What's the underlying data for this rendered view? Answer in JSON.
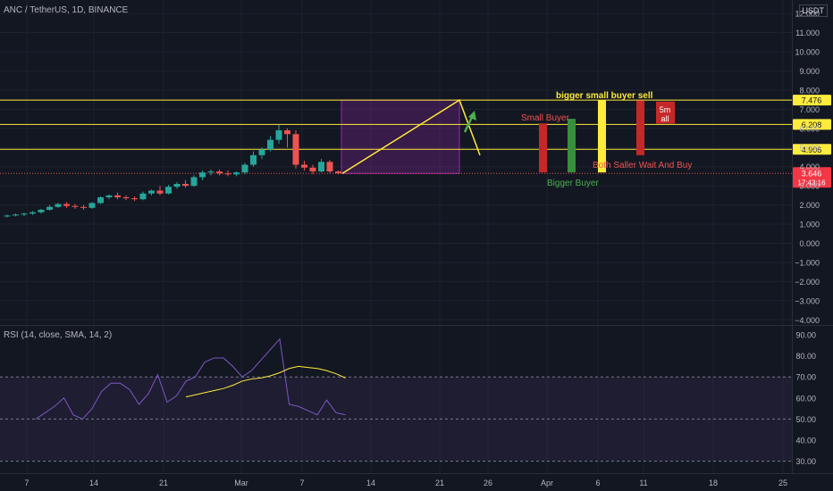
{
  "header": {
    "symbol_line": "ANC / TetherUS, 1D, BINANCE",
    "currency": "USDT"
  },
  "rsi_panel": {
    "title": "RSI (14, close, SMA, 14, 2)",
    "y_ticks": [
      "90.00",
      "80.00",
      "70.00",
      "60.00",
      "50.00",
      "40.00",
      "30.00"
    ]
  },
  "price_panel": {
    "y_ticks": [
      "12.000",
      "11.000",
      "10.000",
      "9.000",
      "8.000",
      "7.000",
      "6.000",
      "5.000",
      "4.000",
      "3.000",
      "2.000",
      "1.000",
      "0.000",
      "−1.000",
      "−2.000",
      "−3.000",
      "−4.000"
    ]
  },
  "x_axis": {
    "labels": [
      "7",
      "14",
      "21",
      "Mar",
      "7",
      "14",
      "21",
      "26",
      "Apr",
      "6",
      "11",
      "18",
      "25"
    ]
  },
  "levels": [
    {
      "value": "7.476",
      "color": "#ffeb3b"
    },
    {
      "value": "6.208",
      "color": "#ffeb3b"
    },
    {
      "value": "4.906",
      "color": "#ffeb3b"
    }
  ],
  "current_price": {
    "value": "3.646",
    "timer": "17:43:16",
    "color": "#f23645"
  },
  "annotations": {
    "bigger_small_buyer_sell": "bigger small buyer sell",
    "small_buyer": "Small Buyer",
    "bigger_buyer": "Bigger Buyer",
    "both_saller": "Both Saller Wait And Buy",
    "box_5m_line1": "5m",
    "box_5m_line2": "all"
  },
  "colors": {
    "up": "#26a69a",
    "down": "#ef5350",
    "level": "#ffeb3b",
    "rsi": "#7e57c2",
    "rsi_ma": "#ffeb3b",
    "zone_fill": "#9c27b0",
    "green_bar": "#388e3c",
    "red_bar": "#c62828",
    "yellow_bar": "#ffeb3b"
  },
  "chart_data": [
    {
      "type": "candlestick",
      "title": "ANC / TetherUS, 1D, BINANCE",
      "ylim": [
        -4,
        13
      ],
      "candles": [
        {
          "o": 1.4,
          "h": 1.5,
          "l": 1.35,
          "c": 1.45
        },
        {
          "o": 1.45,
          "h": 1.55,
          "l": 1.4,
          "c": 1.5
        },
        {
          "o": 1.5,
          "h": 1.6,
          "l": 1.42,
          "c": 1.55
        },
        {
          "o": 1.55,
          "h": 1.68,
          "l": 1.48,
          "c": 1.62
        },
        {
          "o": 1.62,
          "h": 1.8,
          "l": 1.55,
          "c": 1.75
        },
        {
          "o": 1.75,
          "h": 2.0,
          "l": 1.7,
          "c": 1.9
        },
        {
          "o": 1.9,
          "h": 2.1,
          "l": 1.85,
          "c": 2.05
        },
        {
          "o": 2.05,
          "h": 2.15,
          "l": 1.85,
          "c": 1.95
        },
        {
          "o": 1.95,
          "h": 2.05,
          "l": 1.8,
          "c": 1.9
        },
        {
          "o": 1.9,
          "h": 2.0,
          "l": 1.75,
          "c": 1.85
        },
        {
          "o": 1.85,
          "h": 2.15,
          "l": 1.8,
          "c": 2.1
        },
        {
          "o": 2.1,
          "h": 2.45,
          "l": 2.05,
          "c": 2.4
        },
        {
          "o": 2.4,
          "h": 2.55,
          "l": 2.3,
          "c": 2.5
        },
        {
          "o": 2.5,
          "h": 2.65,
          "l": 2.3,
          "c": 2.4
        },
        {
          "o": 2.4,
          "h": 2.5,
          "l": 2.25,
          "c": 2.35
        },
        {
          "o": 2.35,
          "h": 2.45,
          "l": 2.2,
          "c": 2.3
        },
        {
          "o": 2.3,
          "h": 2.7,
          "l": 2.25,
          "c": 2.6
        },
        {
          "o": 2.6,
          "h": 2.8,
          "l": 2.5,
          "c": 2.75
        },
        {
          "o": 2.75,
          "h": 3.0,
          "l": 2.5,
          "c": 2.6
        },
        {
          "o": 2.6,
          "h": 3.05,
          "l": 2.55,
          "c": 2.95
        },
        {
          "o": 2.95,
          "h": 3.2,
          "l": 2.85,
          "c": 3.1
        },
        {
          "o": 3.1,
          "h": 3.3,
          "l": 2.9,
          "c": 3.0
        },
        {
          "o": 3.0,
          "h": 3.55,
          "l": 2.95,
          "c": 3.45
        },
        {
          "o": 3.45,
          "h": 3.8,
          "l": 3.3,
          "c": 3.7
        },
        {
          "o": 3.7,
          "h": 3.85,
          "l": 3.55,
          "c": 3.75
        },
        {
          "o": 3.75,
          "h": 3.85,
          "l": 3.55,
          "c": 3.65
        },
        {
          "o": 3.65,
          "h": 3.8,
          "l": 3.5,
          "c": 3.6
        },
        {
          "o": 3.6,
          "h": 3.75,
          "l": 3.5,
          "c": 3.7
        },
        {
          "o": 3.7,
          "h": 4.2,
          "l": 3.6,
          "c": 4.1
        },
        {
          "o": 4.1,
          "h": 4.8,
          "l": 4.0,
          "c": 4.6
        },
        {
          "o": 4.6,
          "h": 5.0,
          "l": 4.4,
          "c": 4.9
        },
        {
          "o": 4.9,
          "h": 5.6,
          "l": 4.8,
          "c": 5.4
        },
        {
          "o": 5.4,
          "h": 6.2,
          "l": 5.2,
          "c": 5.9
        },
        {
          "o": 5.9,
          "h": 6.0,
          "l": 5.0,
          "c": 5.7
        },
        {
          "o": 5.7,
          "h": 5.9,
          "l": 3.9,
          "c": 4.1
        },
        {
          "o": 4.1,
          "h": 4.3,
          "l": 3.8,
          "c": 3.95
        },
        {
          "o": 3.95,
          "h": 4.1,
          "l": 3.6,
          "c": 3.75
        },
        {
          "o": 3.75,
          "h": 4.4,
          "l": 3.7,
          "c": 4.25
        },
        {
          "o": 4.25,
          "h": 4.35,
          "l": 3.65,
          "c": 3.75
        },
        {
          "o": 3.75,
          "h": 3.8,
          "l": 3.6,
          "c": 3.65
        }
      ]
    },
    {
      "type": "line",
      "title": "RSI (14, close, SMA, 14, 2)",
      "ylim": [
        27,
        93
      ],
      "series": [
        {
          "values": [
            50,
            53,
            56,
            60,
            52,
            50,
            55,
            63,
            67,
            67,
            64,
            57,
            62,
            71,
            58,
            61,
            68,
            70,
            77,
            79,
            79,
            75,
            70,
            73,
            78,
            83,
            88,
            57,
            56,
            54,
            52,
            59,
            53,
            52
          ]
        },
        {
          "values": [
            null,
            null,
            null,
            null,
            null,
            null,
            null,
            null,
            null,
            null,
            null,
            null,
            null,
            null,
            null,
            null,
            60.5,
            61.5,
            62.5,
            63.5,
            64.5,
            66,
            68,
            69,
            69.5,
            70.5,
            72,
            74,
            75,
            74.5,
            74,
            73,
            71.5,
            69.5
          ]
        }
      ]
    }
  ]
}
